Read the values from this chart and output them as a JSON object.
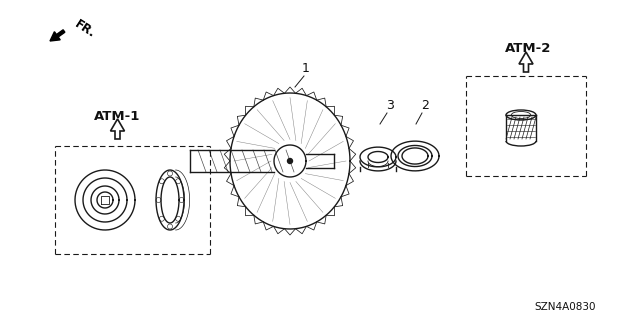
{
  "background_color": "#ffffff",
  "diagram_code": "SZN4A0830",
  "labels": {
    "ATM1": "ATM-1",
    "ATM2": "ATM-2",
    "num1": "1",
    "num2": "2",
    "num3": "3",
    "fr": "FR."
  },
  "colors": {
    "line": "#1a1a1a",
    "text": "#111111"
  }
}
